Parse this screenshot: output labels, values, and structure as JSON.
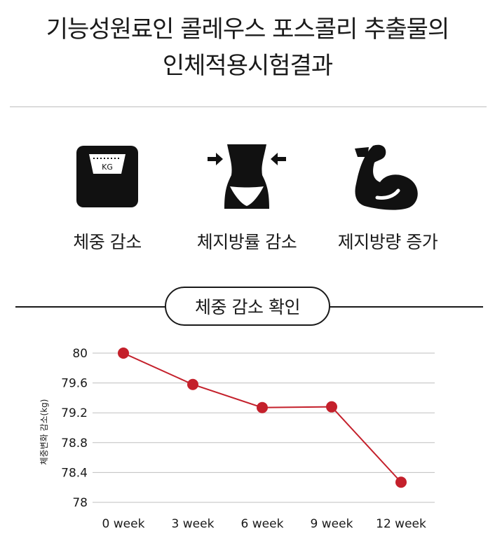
{
  "header": {
    "title_line1": "기능성원료인 콜레우스 포스콜리 추출물의",
    "title_line2": "인체적용시험결과"
  },
  "features": [
    {
      "icon": "scale-icon",
      "label": "체중 감소",
      "icon_text": "KG"
    },
    {
      "icon": "waist-icon",
      "label": "체지방률 감소"
    },
    {
      "icon": "muscle-arm-icon",
      "label": "제지방량 증가"
    }
  ],
  "section": {
    "label": "체중 감소 확인"
  },
  "colors": {
    "line": "#c4202b",
    "text": "#1a1a1a",
    "grid": "#bfbfbf"
  },
  "chart_data": {
    "type": "line",
    "categories": [
      "0 week",
      "3 week",
      "6 week",
      "9 week",
      "12 week"
    ],
    "values": [
      80.0,
      79.58,
      79.27,
      79.28,
      78.27
    ],
    "ylabel": "체중변화 감소(kg)",
    "yticks": [
      "80",
      "79.6",
      "79.2",
      "78.8",
      "78.4",
      "78"
    ],
    "ylim": [
      78,
      80
    ],
    "grid": true
  }
}
